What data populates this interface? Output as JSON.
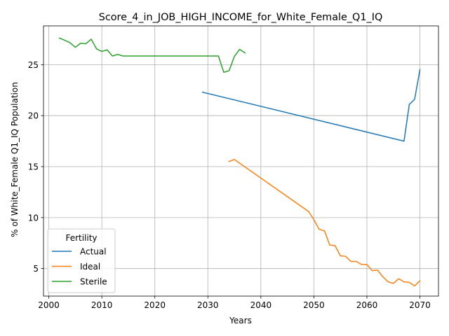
{
  "chart_data": {
    "type": "line",
    "title": "Score_4_in_JOB_HIGH_INCOME_for_White_Female_Q1_IQ",
    "xlabel": "Years",
    "ylabel": "% of White_Female Q1_IQ Population",
    "xlim": [
      1999,
      2073.5
    ],
    "ylim": [
      2.3,
      28.8
    ],
    "xticks": [
      2000,
      2010,
      2020,
      2030,
      2040,
      2050,
      2060,
      2070
    ],
    "yticks": [
      5,
      10,
      15,
      20,
      25
    ],
    "grid": true,
    "legend": {
      "title": "Fertility",
      "placement": "lower-left"
    },
    "series": [
      {
        "name": "Actual",
        "color": "#1f77b4",
        "points": [
          [
            2029,
            22.3
          ],
          [
            2067,
            17.5
          ],
          [
            2068,
            21.1
          ],
          [
            2069,
            21.6
          ],
          [
            2070,
            24.5
          ]
        ]
      },
      {
        "name": "Ideal",
        "color": "#ff7f0e",
        "points": [
          [
            2034,
            15.5
          ],
          [
            2035,
            15.7
          ],
          [
            2049,
            10.6
          ],
          [
            2050,
            9.8
          ],
          [
            2051,
            8.85
          ],
          [
            2052,
            8.7
          ],
          [
            2053,
            7.3
          ],
          [
            2054,
            7.25
          ],
          [
            2055,
            6.25
          ],
          [
            2056,
            6.2
          ],
          [
            2057,
            5.7
          ],
          [
            2058,
            5.7
          ],
          [
            2059,
            5.4
          ],
          [
            2060,
            5.4
          ],
          [
            2061,
            4.8
          ],
          [
            2062,
            4.85
          ],
          [
            2063,
            4.2
          ],
          [
            2064,
            3.7
          ],
          [
            2065,
            3.55
          ],
          [
            2066,
            4.0
          ],
          [
            2067,
            3.7
          ],
          [
            2068,
            3.65
          ],
          [
            2069,
            3.3
          ],
          [
            2070,
            3.8
          ]
        ]
      },
      {
        "name": "Sterile",
        "color": "#2ca02c",
        "points": [
          [
            2002,
            27.6
          ],
          [
            2003,
            27.4
          ],
          [
            2004,
            27.15
          ],
          [
            2005,
            26.7
          ],
          [
            2006,
            27.1
          ],
          [
            2007,
            27.05
          ],
          [
            2008,
            27.5
          ],
          [
            2009,
            26.55
          ],
          [
            2010,
            26.3
          ],
          [
            2011,
            26.45
          ],
          [
            2012,
            25.85
          ],
          [
            2013,
            26.0
          ],
          [
            2014,
            25.85
          ],
          [
            2032,
            25.85
          ],
          [
            2033,
            24.25
          ],
          [
            2034,
            24.4
          ],
          [
            2035,
            25.8
          ],
          [
            2036,
            26.5
          ],
          [
            2037,
            26.15
          ]
        ]
      }
    ]
  }
}
